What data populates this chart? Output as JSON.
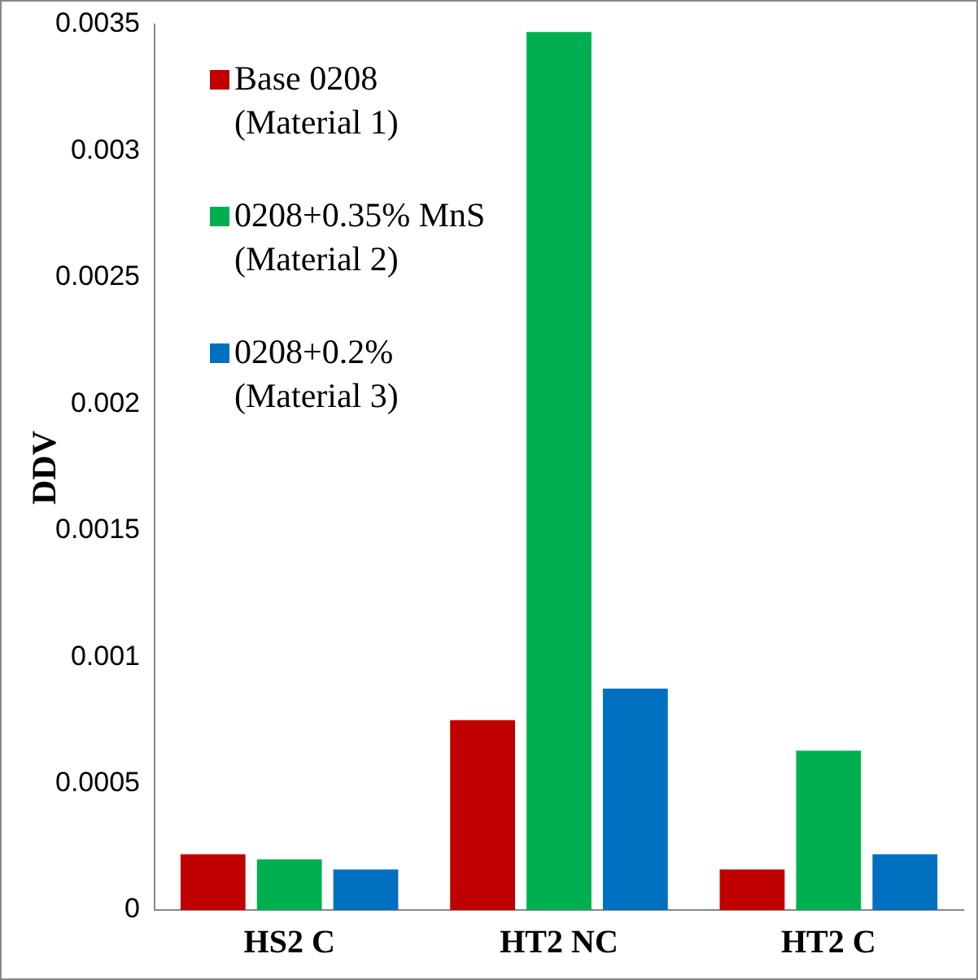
{
  "chart_data": {
    "type": "bar",
    "ylabel": "DDV",
    "categories": [
      "HS2 C",
      "HT2 NC",
      "HT2 C"
    ],
    "series": [
      {
        "name": "Base 0208 (Material 1)",
        "color": "#c00000",
        "values": [
          0.00022,
          0.00075,
          0.00016
        ]
      },
      {
        "name": "0208+0.35% MnS (Material 2)",
        "color": "#00b050",
        "values": [
          0.0002,
          0.00347,
          0.00063
        ]
      },
      {
        "name": "0208+0.2% (Material 3)",
        "color": "#0070c0",
        "values": [
          0.00016,
          0.000875,
          0.00022
        ]
      }
    ],
    "ylim": [
      0,
      0.0035
    ],
    "yticks": [
      0,
      0.0005,
      0.001,
      0.0015,
      0.002,
      0.0025,
      0.003,
      0.0035
    ],
    "grid": false,
    "legend": "top left"
  }
}
